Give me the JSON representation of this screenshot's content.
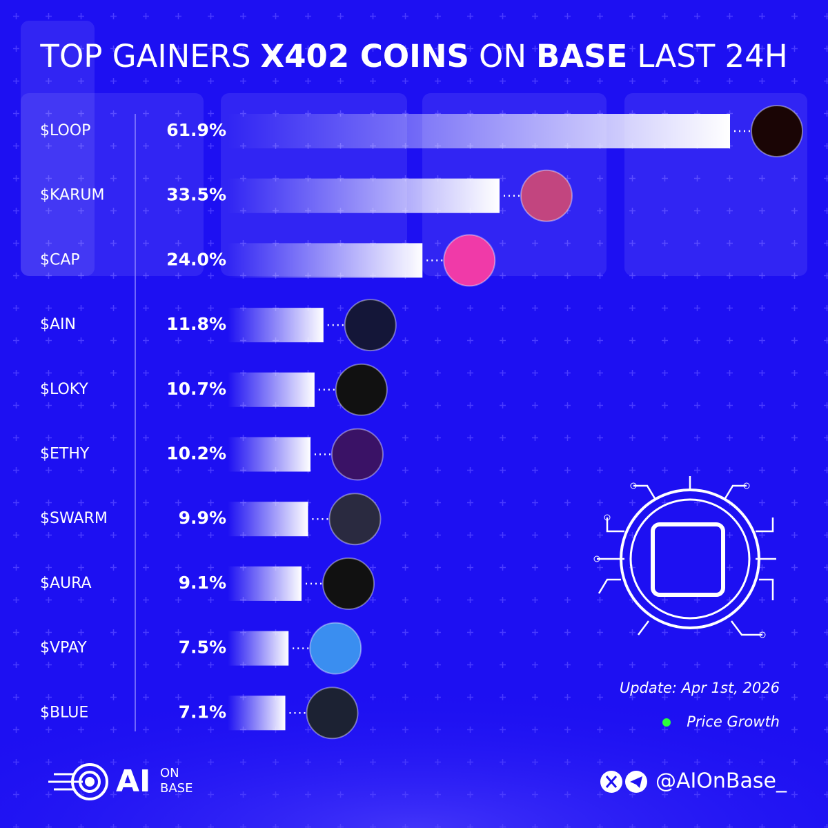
{
  "chart_data": {
    "type": "bar",
    "orientation": "horizontal",
    "title_segments": [
      {
        "text": "TOP GAINERS",
        "bold": false
      },
      {
        "text": "X402 COINS",
        "bold": true
      },
      {
        "text": "ON",
        "bold": false
      },
      {
        "text": "BASE",
        "bold": true
      },
      {
        "text": "LAST 24H",
        "bold": false
      }
    ],
    "categories": [
      "$LOOP",
      "$KARUM",
      "$CAP",
      "$AIN",
      "$LOKY",
      "$ETHY",
      "$SWARM",
      "$AURA",
      "$VPAY",
      "$BLUE"
    ],
    "series": [
      {
        "name": "Price Growth",
        "color": "#2bff3b",
        "values": [
          61.9,
          33.5,
          24.0,
          11.8,
          10.7,
          10.2,
          9.9,
          9.1,
          7.5,
          7.1
        ],
        "value_labels": [
          "61.9%",
          "33.5%",
          "24.0%",
          "11.8%",
          "10.7%",
          "10.2%",
          "9.9%",
          "9.1%",
          "7.5%",
          "7.1%"
        ]
      }
    ],
    "legend": "bottom-right",
    "update": "Update: Apr 1st, 2026",
    "brand": {
      "main": "AI",
      "top": "ON",
      "bottom": "BASE",
      "handle": "@AIOnBase_"
    }
  }
}
